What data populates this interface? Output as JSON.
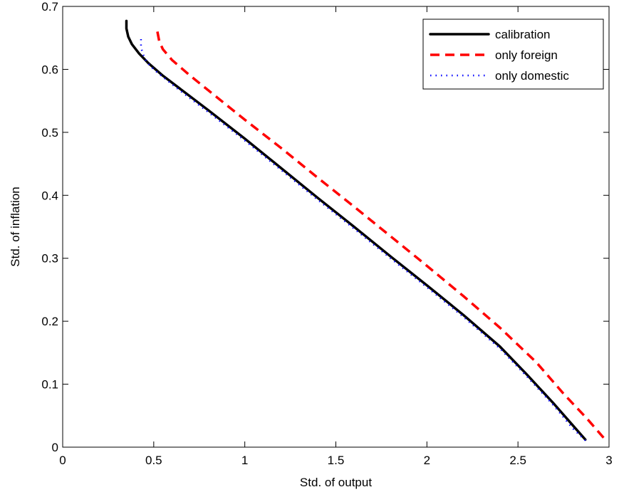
{
  "chart_data": {
    "type": "line",
    "title": "",
    "xlabel": "Std. of output",
    "ylabel": "Std. of inflation",
    "xlim": [
      0,
      3
    ],
    "ylim": [
      0,
      0.7
    ],
    "xticks": [
      0,
      0.5,
      1,
      1.5,
      2,
      2.5,
      3
    ],
    "yticks": [
      0,
      0.1,
      0.2,
      0.3,
      0.4,
      0.5,
      0.6,
      0.7
    ],
    "xtick_labels": [
      "0",
      "0.5",
      "1",
      "1.5",
      "2",
      "2.5",
      "3"
    ],
    "ytick_labels": [
      "0",
      "0.1",
      "0.2",
      "0.3",
      "0.4",
      "0.5",
      "0.6",
      "0.7"
    ],
    "grid": false,
    "legend_position": "top-right",
    "series": [
      {
        "name": "calibration",
        "color": "#000000",
        "style": "solid",
        "x": [
          0.35,
          0.35,
          0.36,
          0.38,
          0.42,
          0.47,
          0.55,
          0.65,
          0.8,
          1.0,
          1.2,
          1.4,
          1.6,
          1.8,
          2.0,
          2.2,
          2.4,
          2.55,
          2.7,
          2.8,
          2.87
        ],
        "y": [
          0.677,
          0.665,
          0.652,
          0.64,
          0.625,
          0.61,
          0.59,
          0.568,
          0.535,
          0.49,
          0.443,
          0.396,
          0.35,
          0.303,
          0.257,
          0.21,
          0.16,
          0.115,
          0.068,
          0.035,
          0.012
        ]
      },
      {
        "name": "only foreign",
        "color": "#ff0000",
        "style": "dashed",
        "x": [
          0.52,
          0.53,
          0.55,
          0.6,
          0.7,
          0.85,
          1.0,
          1.2,
          1.4,
          1.6,
          1.8,
          2.0,
          2.2,
          2.4,
          2.6,
          2.75,
          2.88,
          2.97
        ],
        "y": [
          0.66,
          0.645,
          0.632,
          0.615,
          0.59,
          0.555,
          0.52,
          0.475,
          0.428,
          0.382,
          0.335,
          0.288,
          0.24,
          0.19,
          0.135,
          0.085,
          0.045,
          0.015
        ]
      },
      {
        "name": "only domestic",
        "color": "#0000ff",
        "style": "dotted",
        "x": [
          0.43,
          0.43,
          0.44,
          0.46,
          0.5,
          0.55,
          0.65,
          0.8,
          1.0,
          1.2,
          1.4,
          1.6,
          1.8,
          2.0,
          2.2,
          2.4,
          2.55,
          2.7,
          2.8,
          2.88
        ],
        "y": [
          0.648,
          0.635,
          0.625,
          0.612,
          0.6,
          0.588,
          0.565,
          0.532,
          0.487,
          0.44,
          0.393,
          0.347,
          0.3,
          0.254,
          0.207,
          0.157,
          0.112,
          0.065,
          0.03,
          0.008
        ]
      }
    ]
  }
}
